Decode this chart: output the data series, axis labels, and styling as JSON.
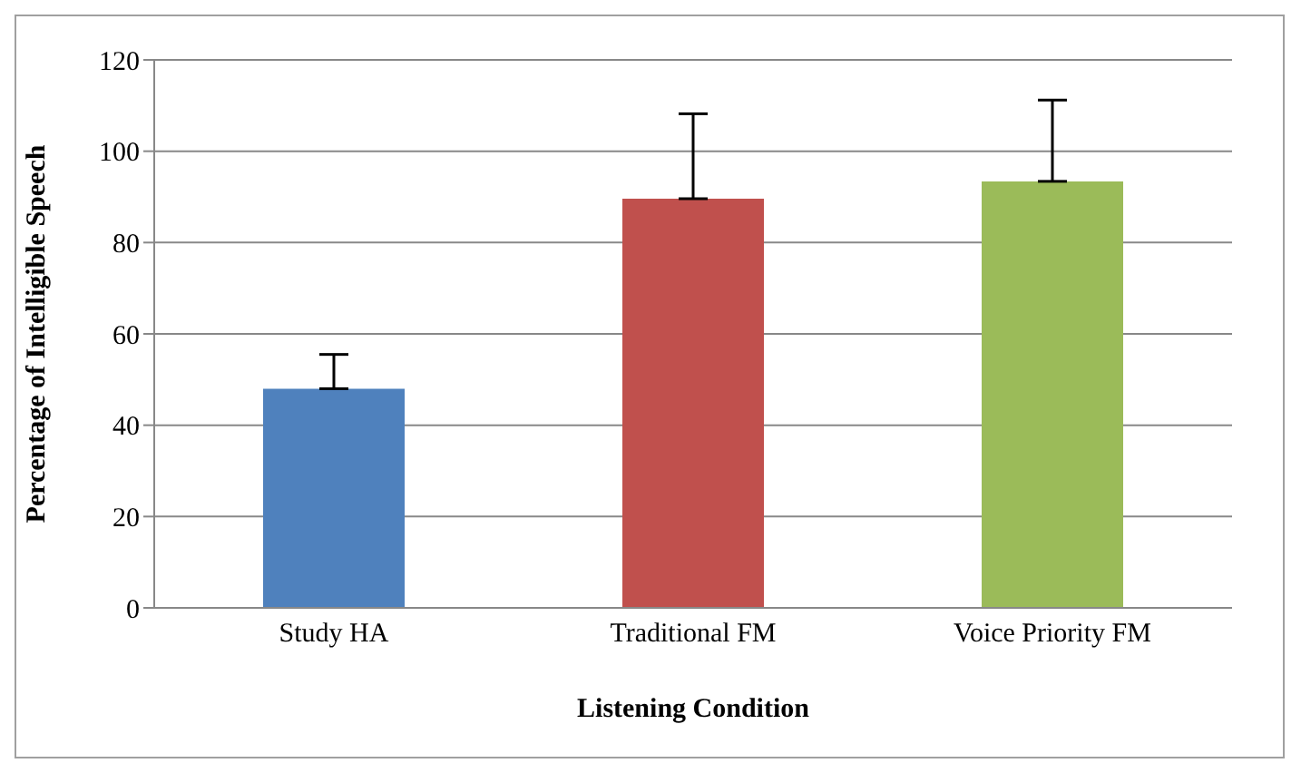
{
  "chart_data": {
    "type": "bar",
    "xlabel": "Listening Condition",
    "ylabel": "Percentage of Intelligible Speech",
    "categories": [
      "Study HA",
      "Traditional FM",
      "Voice Priority FM"
    ],
    "values": [
      48,
      89.6,
      93.4
    ],
    "colors": [
      "#4f81bd",
      "#c0504d",
      "#9bbb59"
    ],
    "errors": [
      [
        48,
        55.5
      ],
      [
        89.6,
        108.2
      ],
      [
        93.4,
        111.2
      ]
    ],
    "ylim": [
      0,
      120
    ],
    "yticks": [
      0,
      20,
      40,
      60,
      80,
      100,
      120
    ],
    "grid": "y",
    "legend": false
  }
}
